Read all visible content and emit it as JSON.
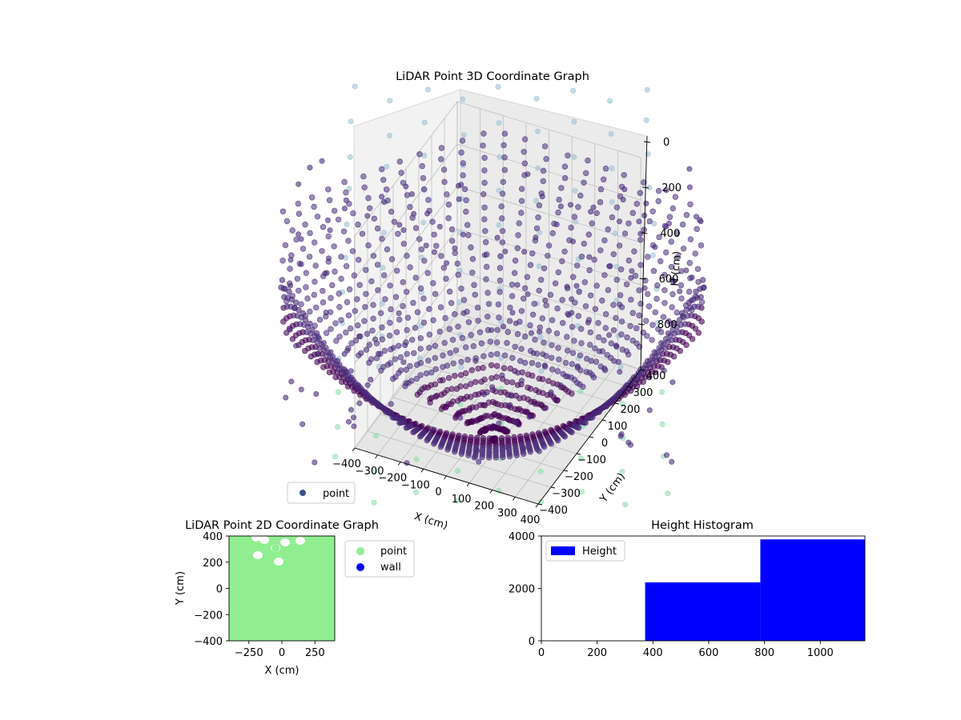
{
  "chart_data": [
    {
      "id": "lidar-3d",
      "type": "scatter3d",
      "title": "LiDAR Point 3D Coordinate Graph",
      "xlabel": "X (cm)",
      "ylabel": "Y (cm)",
      "zlabel": "H (cm)",
      "xlim": [
        -400,
        400
      ],
      "ylim": [
        -400,
        400
      ],
      "zlim": [
        0,
        1000
      ],
      "z_inverted": true,
      "x_ticks": [
        -400,
        -300,
        -200,
        -100,
        0,
        100,
        200,
        300,
        400
      ],
      "x_tick_labels": [
        "−400",
        "−300",
        "−200",
        "−100",
        "0",
        "100",
        "200",
        "300",
        "400"
      ],
      "y_ticks": [
        -400,
        -300,
        -200,
        -100,
        0,
        100,
        200,
        300,
        400
      ],
      "y_tick_labels": [
        "−400",
        "−300",
        "−200",
        "−100",
        "0",
        "100",
        "200",
        "300",
        "400"
      ],
      "z_ticks": [
        0,
        200,
        400,
        600,
        800
      ],
      "z_tick_labels": [
        "0",
        "200",
        "400",
        "600",
        "800"
      ],
      "legend": {
        "position": "lower-left",
        "entries": [
          {
            "label": "point",
            "color": "#3b528b"
          }
        ]
      },
      "colormap": "viridis",
      "grid": true
    },
    {
      "id": "lidar-2d",
      "type": "scatter",
      "title": "LiDAR Point 2D Coordinate Graph",
      "xlabel": "X (cm)",
      "ylabel": "Y (cm)",
      "xlim": [
        -400,
        400
      ],
      "ylim": [
        -400,
        400
      ],
      "x_ticks": [
        -250,
        0,
        250
      ],
      "x_tick_labels": [
        "−250",
        "0",
        "250"
      ],
      "y_ticks": [
        -400,
        -200,
        0,
        200,
        400
      ],
      "y_tick_labels": [
        "−400",
        "−200",
        "0",
        "200",
        "400"
      ],
      "series": [
        {
          "name": "point",
          "color": "#90ee90",
          "marker": "circle",
          "coverage": "fills the plotted area"
        },
        {
          "name": "wall",
          "color": "#0000ff",
          "marker": "circle"
        }
      ],
      "legend": {
        "position": "outside-right",
        "entries": [
          {
            "label": "point",
            "color": "#90ee90"
          },
          {
            "label": "wall",
            "color": "#0000ff"
          }
        ]
      },
      "grid": false
    },
    {
      "id": "height-hist",
      "type": "bar",
      "title": "Height Histogram",
      "xlim": [
        0,
        1160
      ],
      "ylim": [
        0,
        4000
      ],
      "x_ticks": [
        0,
        200,
        400,
        600,
        800,
        1000
      ],
      "x_tick_labels": [
        "0",
        "200",
        "400",
        "600",
        "800",
        "1000"
      ],
      "y_ticks": [
        0,
        2000,
        4000
      ],
      "y_tick_labels": [
        "0",
        "2000",
        "4000"
      ],
      "bins": [
        {
          "x0": 0,
          "x1": 372,
          "value": 0
        },
        {
          "x0": 372,
          "x1": 785,
          "value": 2230
        },
        {
          "x0": 785,
          "x1": 1160,
          "value": 3870
        }
      ],
      "series": [
        {
          "name": "Height",
          "color": "#0000ff"
        }
      ],
      "legend": {
        "position": "top-left",
        "entries": [
          {
            "label": "Height",
            "color": "#0000ff"
          }
        ]
      },
      "grid": false
    }
  ]
}
